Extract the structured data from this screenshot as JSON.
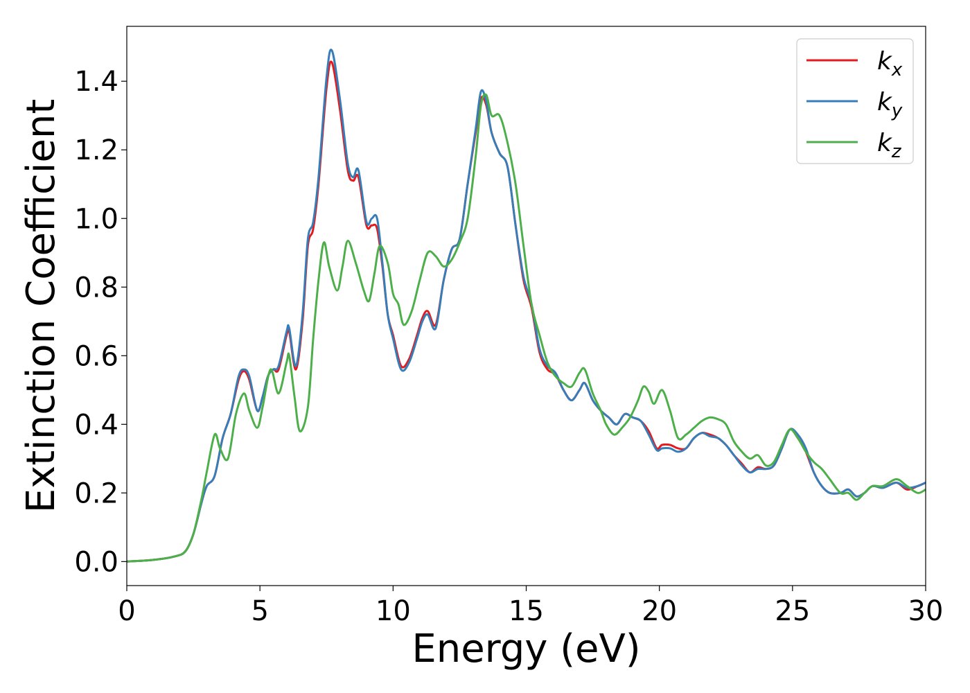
{
  "chart_data": {
    "type": "line",
    "title": "",
    "xlabel": "Energy (eV)",
    "ylabel": "Extinction Coefficient",
    "xlim": [
      0,
      30
    ],
    "ylim": [
      -0.07,
      1.56
    ],
    "xticks": [
      0,
      5,
      10,
      15,
      20,
      25,
      30
    ],
    "yticks": [
      0.0,
      0.2,
      0.4,
      0.6,
      0.8,
      1.0,
      1.2,
      1.4
    ],
    "xtick_labels": [
      "0",
      "5",
      "10",
      "15",
      "20",
      "25",
      "30"
    ],
    "ytick_labels": [
      "0.0",
      "0.2",
      "0.4",
      "0.6",
      "0.8",
      "1.0",
      "1.2",
      "1.4"
    ],
    "grid": false,
    "legend_position": "top-right",
    "series": [
      {
        "name": "k_x",
        "label_main": "k",
        "label_sub": "x",
        "color": "#e41a1c",
        "x": [
          0,
          1,
          1.8,
          2.2,
          2.5,
          2.8,
          3.0,
          3.3,
          3.6,
          3.9,
          4.2,
          4.4,
          4.6,
          4.9,
          5.1,
          5.3,
          5.5,
          5.7,
          6.0,
          6.1,
          6.35,
          6.6,
          6.8,
          7.0,
          7.2,
          7.5,
          7.7,
          8.0,
          8.3,
          8.5,
          8.7,
          9.0,
          9.2,
          9.4,
          9.6,
          9.8,
          10.0,
          10.3,
          10.6,
          10.9,
          11.1,
          11.3,
          11.6,
          11.9,
          12.2,
          12.5,
          12.8,
          13.1,
          13.3,
          13.5,
          13.7,
          14.0,
          14.3,
          14.6,
          14.9,
          15.2,
          15.5,
          15.8,
          16.1,
          16.4,
          16.7,
          17.0,
          17.2,
          17.5,
          17.8,
          18.1,
          18.4,
          18.7,
          19.0,
          19.3,
          19.6,
          19.9,
          20.1,
          20.4,
          20.7,
          21.0,
          21.3,
          21.6,
          21.9,
          22.2,
          22.5,
          22.8,
          23.1,
          23.4,
          23.7,
          24.0,
          24.3,
          24.6,
          24.9,
          25.2,
          25.5,
          25.8,
          26.1,
          26.4,
          26.8,
          27.1,
          27.4,
          27.7,
          28.0,
          28.4,
          28.9,
          29.3,
          29.7,
          30.0
        ],
        "y": [
          0.0,
          0.005,
          0.015,
          0.03,
          0.08,
          0.17,
          0.22,
          0.25,
          0.36,
          0.43,
          0.53,
          0.555,
          0.53,
          0.44,
          0.48,
          0.54,
          0.56,
          0.56,
          0.66,
          0.67,
          0.56,
          0.7,
          0.92,
          0.97,
          1.1,
          1.38,
          1.455,
          1.32,
          1.14,
          1.11,
          1.12,
          0.98,
          0.98,
          0.97,
          0.86,
          0.72,
          0.66,
          0.57,
          0.59,
          0.66,
          0.71,
          0.73,
          0.69,
          0.82,
          0.91,
          0.94,
          1.1,
          1.25,
          1.35,
          1.33,
          1.25,
          1.19,
          1.15,
          0.98,
          0.82,
          0.74,
          0.61,
          0.56,
          0.545,
          0.5,
          0.47,
          0.5,
          0.52,
          0.47,
          0.44,
          0.42,
          0.4,
          0.43,
          0.42,
          0.41,
          0.38,
          0.33,
          0.34,
          0.34,
          0.33,
          0.33,
          0.36,
          0.375,
          0.37,
          0.36,
          0.34,
          0.31,
          0.285,
          0.26,
          0.275,
          0.27,
          0.28,
          0.33,
          0.385,
          0.36,
          0.32,
          0.26,
          0.22,
          0.2,
          0.2,
          0.21,
          0.19,
          0.2,
          0.22,
          0.215,
          0.23,
          0.21,
          0.22,
          0.23
        ]
      },
      {
        "name": "k_y",
        "label_main": "k",
        "label_sub": "y",
        "color": "#377eb8",
        "x": [
          0,
          1,
          1.8,
          2.2,
          2.5,
          2.8,
          3.0,
          3.3,
          3.6,
          3.9,
          4.2,
          4.4,
          4.6,
          4.9,
          5.1,
          5.3,
          5.5,
          5.7,
          6.0,
          6.1,
          6.35,
          6.6,
          6.8,
          7.0,
          7.2,
          7.5,
          7.7,
          8.0,
          8.3,
          8.5,
          8.7,
          9.0,
          9.2,
          9.4,
          9.6,
          9.8,
          10.0,
          10.3,
          10.6,
          10.9,
          11.1,
          11.3,
          11.6,
          11.9,
          12.2,
          12.5,
          12.8,
          13.1,
          13.3,
          13.5,
          13.7,
          14.0,
          14.3,
          14.6,
          14.9,
          15.2,
          15.5,
          15.8,
          16.1,
          16.4,
          16.7,
          17.0,
          17.2,
          17.5,
          17.8,
          18.1,
          18.4,
          18.7,
          19.0,
          19.3,
          19.6,
          19.9,
          20.1,
          20.4,
          20.7,
          21.0,
          21.3,
          21.6,
          21.9,
          22.2,
          22.5,
          22.8,
          23.1,
          23.4,
          23.7,
          24.0,
          24.3,
          24.6,
          24.9,
          25.2,
          25.5,
          25.8,
          26.1,
          26.4,
          26.8,
          27.1,
          27.4,
          27.7,
          28.0,
          28.4,
          28.9,
          29.3,
          29.7,
          30.0
        ],
        "y": [
          0.0,
          0.005,
          0.015,
          0.03,
          0.08,
          0.17,
          0.22,
          0.25,
          0.36,
          0.43,
          0.54,
          0.56,
          0.54,
          0.44,
          0.48,
          0.54,
          0.56,
          0.57,
          0.67,
          0.68,
          0.57,
          0.72,
          0.94,
          0.99,
          1.12,
          1.41,
          1.49,
          1.35,
          1.16,
          1.12,
          1.14,
          0.99,
          1.0,
          1.0,
          0.87,
          0.72,
          0.65,
          0.56,
          0.58,
          0.65,
          0.7,
          0.72,
          0.68,
          0.82,
          0.91,
          0.94,
          1.1,
          1.26,
          1.37,
          1.34,
          1.25,
          1.19,
          1.15,
          0.98,
          0.83,
          0.75,
          0.62,
          0.57,
          0.55,
          0.5,
          0.47,
          0.5,
          0.52,
          0.47,
          0.44,
          0.42,
          0.4,
          0.43,
          0.42,
          0.41,
          0.37,
          0.325,
          0.33,
          0.33,
          0.32,
          0.33,
          0.36,
          0.375,
          0.365,
          0.36,
          0.34,
          0.31,
          0.28,
          0.26,
          0.27,
          0.27,
          0.28,
          0.33,
          0.385,
          0.37,
          0.33,
          0.26,
          0.22,
          0.2,
          0.2,
          0.21,
          0.19,
          0.2,
          0.22,
          0.215,
          0.23,
          0.215,
          0.22,
          0.23
        ]
      },
      {
        "name": "k_z",
        "label_main": "k",
        "label_sub": "z",
        "color": "#4daf4a",
        "x": [
          0,
          1,
          1.8,
          2.2,
          2.5,
          2.8,
          3.0,
          3.3,
          3.5,
          3.8,
          4.1,
          4.4,
          4.6,
          4.9,
          5.1,
          5.4,
          5.7,
          6.0,
          6.1,
          6.3,
          6.5,
          6.8,
          7.0,
          7.2,
          7.4,
          7.6,
          7.9,
          8.1,
          8.3,
          8.6,
          8.9,
          9.1,
          9.3,
          9.5,
          9.8,
          10.0,
          10.2,
          10.4,
          10.7,
          11.0,
          11.3,
          11.6,
          11.9,
          12.2,
          12.5,
          12.8,
          13.1,
          13.3,
          13.5,
          13.7,
          14.0,
          14.3,
          14.6,
          14.9,
          15.2,
          15.5,
          15.8,
          16.1,
          16.4,
          16.7,
          17.0,
          17.2,
          17.5,
          17.8,
          18.0,
          18.3,
          18.6,
          18.9,
          19.2,
          19.4,
          19.6,
          19.8,
          20.1,
          20.4,
          20.7,
          21.0,
          21.3,
          21.6,
          21.9,
          22.2,
          22.5,
          22.8,
          23.1,
          23.4,
          23.7,
          24.0,
          24.3,
          24.6,
          24.9,
          25.2,
          25.5,
          25.8,
          26.1,
          26.4,
          26.8,
          27.1,
          27.4,
          27.7,
          28.0,
          28.4,
          28.9,
          29.3,
          29.7,
          30.0
        ],
        "y": [
          0.0,
          0.005,
          0.015,
          0.03,
          0.08,
          0.18,
          0.26,
          0.37,
          0.33,
          0.3,
          0.43,
          0.49,
          0.44,
          0.39,
          0.45,
          0.56,
          0.49,
          0.58,
          0.6,
          0.48,
          0.38,
          0.45,
          0.65,
          0.82,
          0.93,
          0.86,
          0.79,
          0.86,
          0.935,
          0.87,
          0.79,
          0.76,
          0.84,
          0.92,
          0.87,
          0.78,
          0.75,
          0.69,
          0.73,
          0.82,
          0.9,
          0.89,
          0.86,
          0.88,
          0.93,
          1.0,
          1.18,
          1.33,
          1.36,
          1.3,
          1.3,
          1.22,
          1.1,
          0.92,
          0.75,
          0.66,
          0.58,
          0.54,
          0.52,
          0.51,
          0.55,
          0.56,
          0.49,
          0.44,
          0.4,
          0.37,
          0.39,
          0.42,
          0.47,
          0.51,
          0.495,
          0.46,
          0.5,
          0.44,
          0.36,
          0.37,
          0.39,
          0.41,
          0.42,
          0.415,
          0.4,
          0.35,
          0.32,
          0.3,
          0.31,
          0.28,
          0.29,
          0.34,
          0.385,
          0.36,
          0.32,
          0.29,
          0.27,
          0.24,
          0.2,
          0.2,
          0.18,
          0.2,
          0.22,
          0.22,
          0.24,
          0.22,
          0.2,
          0.21
        ]
      }
    ]
  }
}
